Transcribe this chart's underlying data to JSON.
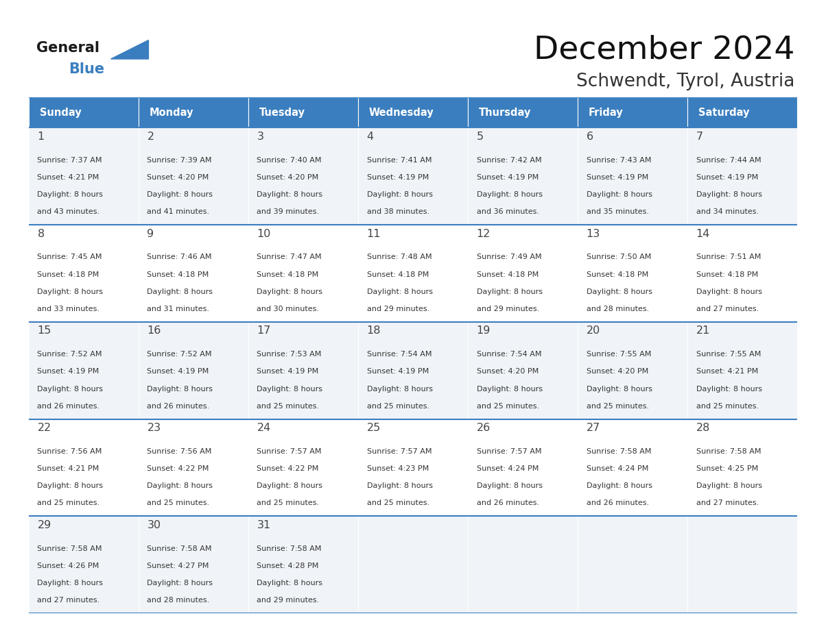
{
  "title": "December 2024",
  "subtitle": "Schwendt, Tyrol, Austria",
  "header_color": "#3A7EBF",
  "header_text_color": "#FFFFFF",
  "cell_bg_even": "#F0F4F8",
  "cell_bg_odd": "#FFFFFF",
  "border_color": "#3A7EBF",
  "text_color": "#333333",
  "day_num_color": "#444444",
  "days_of_week": [
    "Sunday",
    "Monday",
    "Tuesday",
    "Wednesday",
    "Thursday",
    "Friday",
    "Saturday"
  ],
  "weeks": [
    [
      {
        "day": 1,
        "sunrise": "7:37 AM",
        "sunset": "4:21 PM",
        "daylight_h": "8 hours",
        "daylight_m": "43 minutes."
      },
      {
        "day": 2,
        "sunrise": "7:39 AM",
        "sunset": "4:20 PM",
        "daylight_h": "8 hours",
        "daylight_m": "41 minutes."
      },
      {
        "day": 3,
        "sunrise": "7:40 AM",
        "sunset": "4:20 PM",
        "daylight_h": "8 hours",
        "daylight_m": "39 minutes."
      },
      {
        "day": 4,
        "sunrise": "7:41 AM",
        "sunset": "4:19 PM",
        "daylight_h": "8 hours",
        "daylight_m": "38 minutes."
      },
      {
        "day": 5,
        "sunrise": "7:42 AM",
        "sunset": "4:19 PM",
        "daylight_h": "8 hours",
        "daylight_m": "36 minutes."
      },
      {
        "day": 6,
        "sunrise": "7:43 AM",
        "sunset": "4:19 PM",
        "daylight_h": "8 hours",
        "daylight_m": "35 minutes."
      },
      {
        "day": 7,
        "sunrise": "7:44 AM",
        "sunset": "4:19 PM",
        "daylight_h": "8 hours",
        "daylight_m": "34 minutes."
      }
    ],
    [
      {
        "day": 8,
        "sunrise": "7:45 AM",
        "sunset": "4:18 PM",
        "daylight_h": "8 hours",
        "daylight_m": "33 minutes."
      },
      {
        "day": 9,
        "sunrise": "7:46 AM",
        "sunset": "4:18 PM",
        "daylight_h": "8 hours",
        "daylight_m": "31 minutes."
      },
      {
        "day": 10,
        "sunrise": "7:47 AM",
        "sunset": "4:18 PM",
        "daylight_h": "8 hours",
        "daylight_m": "30 minutes."
      },
      {
        "day": 11,
        "sunrise": "7:48 AM",
        "sunset": "4:18 PM",
        "daylight_h": "8 hours",
        "daylight_m": "29 minutes."
      },
      {
        "day": 12,
        "sunrise": "7:49 AM",
        "sunset": "4:18 PM",
        "daylight_h": "8 hours",
        "daylight_m": "29 minutes."
      },
      {
        "day": 13,
        "sunrise": "7:50 AM",
        "sunset": "4:18 PM",
        "daylight_h": "8 hours",
        "daylight_m": "28 minutes."
      },
      {
        "day": 14,
        "sunrise": "7:51 AM",
        "sunset": "4:18 PM",
        "daylight_h": "8 hours",
        "daylight_m": "27 minutes."
      }
    ],
    [
      {
        "day": 15,
        "sunrise": "7:52 AM",
        "sunset": "4:19 PM",
        "daylight_h": "8 hours",
        "daylight_m": "26 minutes."
      },
      {
        "day": 16,
        "sunrise": "7:52 AM",
        "sunset": "4:19 PM",
        "daylight_h": "8 hours",
        "daylight_m": "26 minutes."
      },
      {
        "day": 17,
        "sunrise": "7:53 AM",
        "sunset": "4:19 PM",
        "daylight_h": "8 hours",
        "daylight_m": "25 minutes."
      },
      {
        "day": 18,
        "sunrise": "7:54 AM",
        "sunset": "4:19 PM",
        "daylight_h": "8 hours",
        "daylight_m": "25 minutes."
      },
      {
        "day": 19,
        "sunrise": "7:54 AM",
        "sunset": "4:20 PM",
        "daylight_h": "8 hours",
        "daylight_m": "25 minutes."
      },
      {
        "day": 20,
        "sunrise": "7:55 AM",
        "sunset": "4:20 PM",
        "daylight_h": "8 hours",
        "daylight_m": "25 minutes."
      },
      {
        "day": 21,
        "sunrise": "7:55 AM",
        "sunset": "4:21 PM",
        "daylight_h": "8 hours",
        "daylight_m": "25 minutes."
      }
    ],
    [
      {
        "day": 22,
        "sunrise": "7:56 AM",
        "sunset": "4:21 PM",
        "daylight_h": "8 hours",
        "daylight_m": "25 minutes."
      },
      {
        "day": 23,
        "sunrise": "7:56 AM",
        "sunset": "4:22 PM",
        "daylight_h": "8 hours",
        "daylight_m": "25 minutes."
      },
      {
        "day": 24,
        "sunrise": "7:57 AM",
        "sunset": "4:22 PM",
        "daylight_h": "8 hours",
        "daylight_m": "25 minutes."
      },
      {
        "day": 25,
        "sunrise": "7:57 AM",
        "sunset": "4:23 PM",
        "daylight_h": "8 hours",
        "daylight_m": "25 minutes."
      },
      {
        "day": 26,
        "sunrise": "7:57 AM",
        "sunset": "4:24 PM",
        "daylight_h": "8 hours",
        "daylight_m": "26 minutes."
      },
      {
        "day": 27,
        "sunrise": "7:58 AM",
        "sunset": "4:24 PM",
        "daylight_h": "8 hours",
        "daylight_m": "26 minutes."
      },
      {
        "day": 28,
        "sunrise": "7:58 AM",
        "sunset": "4:25 PM",
        "daylight_h": "8 hours",
        "daylight_m": "27 minutes."
      }
    ],
    [
      {
        "day": 29,
        "sunrise": "7:58 AM",
        "sunset": "4:26 PM",
        "daylight_h": "8 hours",
        "daylight_m": "27 minutes."
      },
      {
        "day": 30,
        "sunrise": "7:58 AM",
        "sunset": "4:27 PM",
        "daylight_h": "8 hours",
        "daylight_m": "28 minutes."
      },
      {
        "day": 31,
        "sunrise": "7:58 AM",
        "sunset": "4:28 PM",
        "daylight_h": "8 hours",
        "daylight_m": "29 minutes."
      },
      null,
      null,
      null,
      null
    ]
  ],
  "logo_general_color": "#1a1a1a",
  "logo_blue_color": "#3A7EBF",
  "logo_triangle_color": "#3A7EBF"
}
